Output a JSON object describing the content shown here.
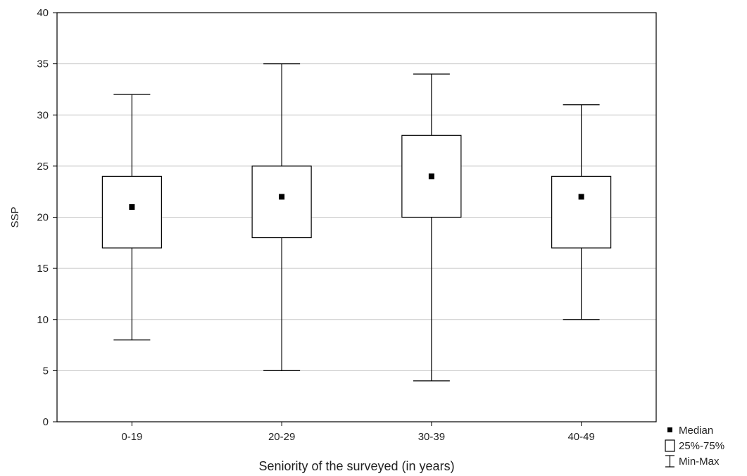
{
  "chart_data": {
    "type": "boxplot",
    "title": "",
    "xlabel": "Seniority of the surveyed (in years)",
    "ylabel": "SSP",
    "ylim": [
      0,
      40
    ],
    "yticks": [
      0,
      5,
      10,
      15,
      20,
      25,
      30,
      35,
      40
    ],
    "grid": true,
    "legend_position": "bottom-right",
    "categories": [
      "0-19",
      "20-29",
      "30-39",
      "40-49"
    ],
    "series": [
      {
        "category": "0-19",
        "min": 8,
        "q1": 17,
        "median": 21,
        "q3": 24,
        "max": 32
      },
      {
        "category": "20-29",
        "min": 5,
        "q1": 18,
        "median": 22,
        "q3": 25,
        "max": 35
      },
      {
        "category": "30-39",
        "min": 4,
        "q1": 20,
        "median": 24,
        "q3": 28,
        "max": 34
      },
      {
        "category": "40-49",
        "min": 10,
        "q1": 17,
        "median": 22,
        "q3": 24,
        "max": 31
      }
    ],
    "legend": [
      {
        "symbol": "square-marker",
        "label": "Median"
      },
      {
        "symbol": "box",
        "label": "25%-75%"
      },
      {
        "symbol": "whisker",
        "label": "Min-Max"
      }
    ],
    "colors": {
      "line": "#000000",
      "grid": "#c8c8c8",
      "box_fill": "#ffffff"
    }
  }
}
